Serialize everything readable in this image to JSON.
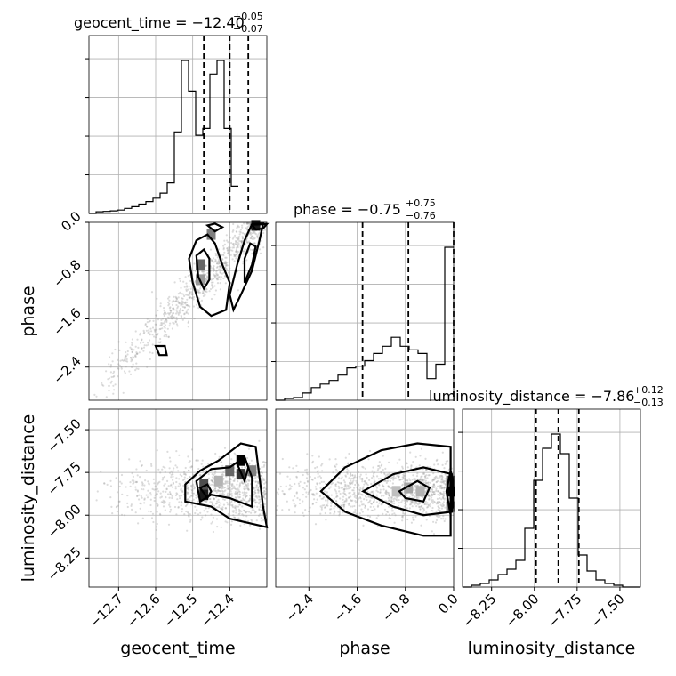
{
  "chart_data": {
    "type": "corner",
    "parameters": [
      {
        "key": "geocent_time",
        "axis_label": "geocent_time",
        "title_text": "geocent_time = −12.40",
        "title_plus": "+0.05",
        "title_minus": "−0.07",
        "range": [
          -12.78,
          -12.3
        ],
        "ticks": [
          -12.7,
          -12.6,
          -12.5,
          -12.4
        ],
        "tick_labels": [
          "−12.7",
          "−12.6",
          "−12.5",
          "−12.4"
        ],
        "quantiles": [
          -12.47,
          -12.4,
          -12.35
        ],
        "hist_edges_start": -12.78,
        "hist_bin_width": 0.0192,
        "hist_counts": [
          0,
          0.01,
          0.012,
          0.015,
          0.02,
          0.03,
          0.04,
          0.055,
          0.07,
          0.09,
          0.12,
          0.18,
          0.48,
          0.9,
          0.72,
          0.46,
          0.5,
          0.82,
          0.9,
          0.5,
          0.16
        ]
      },
      {
        "key": "phase",
        "axis_label": "phase",
        "title_text": "phase = −0.75",
        "title_plus": "+0.75",
        "title_minus": "−0.76",
        "range": [
          -2.95,
          0.0
        ],
        "ticks": [
          -2.4,
          -1.6,
          -0.8,
          0.0
        ],
        "tick_labels": [
          "−2.4",
          "−1.6",
          "−0.8",
          "0.0"
        ],
        "quantiles": [
          -1.51,
          -0.75,
          0.0
        ],
        "hist_edges_start": -2.95,
        "hist_bin_width": 0.1475,
        "hist_counts": [
          0,
          0.01,
          0.015,
          0.04,
          0.07,
          0.09,
          0.11,
          0.14,
          0.18,
          0.19,
          0.22,
          0.26,
          0.3,
          0.35,
          0.3,
          0.28,
          0.26,
          0.12,
          0.2,
          0.85
        ]
      },
      {
        "key": "luminosity_distance",
        "axis_label": "luminosity_distance",
        "title_text": "luminosity_distance = −7.86",
        "title_plus": "+0.12",
        "title_minus": "−0.13",
        "range": [
          -8.42,
          -7.38
        ],
        "ticks": [
          -8.25,
          -8.0,
          -7.75,
          -7.5
        ],
        "tick_labels": [
          "−8.25",
          "−8.00",
          "−7.75",
          "−7.50"
        ],
        "quantiles": [
          -7.99,
          -7.86,
          -7.74
        ],
        "hist_edges_start": -8.42,
        "hist_bin_width": 0.052,
        "hist_counts": [
          0,
          0.01,
          0.02,
          0.04,
          0.07,
          0.1,
          0.15,
          0.33,
          0.6,
          0.78,
          0.86,
          0.75,
          0.5,
          0.18,
          0.09,
          0.04,
          0.02,
          0.01,
          0,
          0
        ]
      }
    ],
    "row_labels": [
      "phase",
      "luminosity_distance"
    ],
    "row_ticks": {
      "phase": [
        "0.0",
        "−0.8",
        "−1.6",
        "−2.4"
      ],
      "luminosity_distance": [
        "−7.50",
        "−7.75",
        "−8.00",
        "−8.25"
      ]
    },
    "grid": true
  }
}
